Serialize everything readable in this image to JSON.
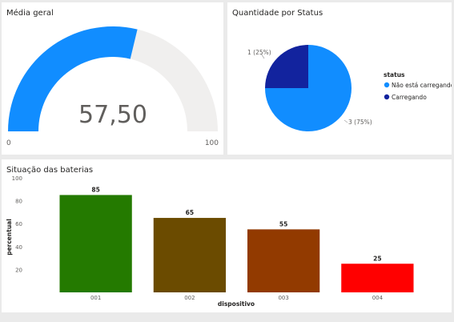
{
  "colors": {
    "gauge_fill": "#118dff",
    "gauge_track": "#f0efee",
    "pie_nao_carregando": "#118dff",
    "pie_carregando": "#12239e",
    "bar_001": "#247a00",
    "bar_002": "#6b4b00",
    "bar_003": "#923a00",
    "bar_004": "#ff0000"
  },
  "gauge": {
    "title": "Média geral",
    "value_label": "57,50",
    "value": 57.5,
    "min_label": "0",
    "max_label": "100",
    "min": 0,
    "max": 100
  },
  "pie": {
    "title": "Quantidade por Status",
    "legend_title": "status",
    "slices": [
      {
        "name": "Não está carregando",
        "value": 3,
        "label": "3 (75%)",
        "color_key": "pie_nao_carregando"
      },
      {
        "name": "Carregando",
        "value": 1,
        "label": "1 (25%)",
        "color_key": "pie_carregando"
      }
    ]
  },
  "chart_data": {
    "type": "bar",
    "title": "Situação das baterias",
    "xlabel": "dispositivo",
    "ylabel": "percentual",
    "categories": [
      "001",
      "002",
      "003",
      "004"
    ],
    "values": [
      85,
      65,
      55,
      25
    ],
    "data_labels": [
      "85",
      "65",
      "55",
      "25"
    ],
    "ylim": [
      0,
      100
    ],
    "yticks": [
      20,
      40,
      60,
      80,
      100
    ],
    "ytick_labels": [
      "20",
      "40",
      "60",
      "80",
      "100"
    ],
    "grid": false,
    "bar_color_keys": [
      "bar_001",
      "bar_002",
      "bar_003",
      "bar_004"
    ]
  }
}
